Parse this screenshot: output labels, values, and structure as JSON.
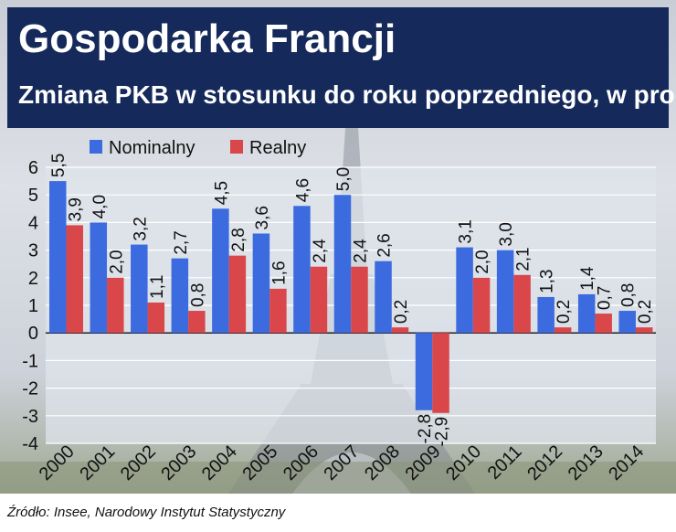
{
  "header": {
    "title": "Gospodarka Francji",
    "subtitle": "Zmiana PKB w stosunku do roku poprzedniego, w proc."
  },
  "source": "Źródło: Insee, Narodowy Instytut Statystyczny",
  "colors": {
    "header_bg": "#152a5b",
    "nominal": "#3c6be0",
    "real": "#d9474b"
  },
  "chart_data": {
    "type": "bar",
    "categories": [
      "2000",
      "2001",
      "2002",
      "2003",
      "2004",
      "2005",
      "2006",
      "2007",
      "2008",
      "2009",
      "2010",
      "2011",
      "2012",
      "2013",
      "2014"
    ],
    "series": [
      {
        "name": "Nominalny",
        "values": [
          5.5,
          4.0,
          3.2,
          2.7,
          4.5,
          3.6,
          4.6,
          5.0,
          2.6,
          -2.8,
          3.1,
          3.0,
          1.3,
          1.4,
          0.8
        ],
        "labels": [
          "5,5",
          "4,0",
          "3,2",
          "2,7",
          "4,5",
          "3,6",
          "4,6",
          "5,0",
          "2,6",
          "-2,8",
          "3,1",
          "3,0",
          "1,3",
          "1,4",
          "0,8"
        ]
      },
      {
        "name": "Realny",
        "values": [
          3.9,
          2.0,
          1.1,
          0.8,
          2.8,
          1.6,
          2.4,
          2.4,
          0.2,
          -2.9,
          2.0,
          2.1,
          0.2,
          0.7,
          0.2
        ],
        "labels": [
          "3,9",
          "2,0",
          "1,1",
          "0,8",
          "2,8",
          "1,6",
          "2,4",
          "2,4",
          "0,2",
          "-2,9",
          "2,0",
          "2,1",
          "0,2",
          "0,7",
          "0,2"
        ]
      }
    ],
    "ylim": [
      -4,
      6
    ],
    "yticks": [
      6,
      5,
      4,
      3,
      2,
      1,
      0,
      -1,
      -2,
      -3,
      -4
    ],
    "grid": true,
    "legend": "top-left"
  }
}
